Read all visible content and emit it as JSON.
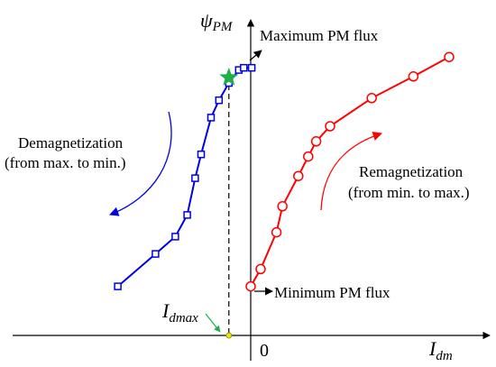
{
  "colors": {
    "demag": "#0000e6",
    "remag": "#ff0000",
    "axis": "#000000",
    "star": "#1fae4a",
    "point": "#e8e800",
    "pointer": "#1fae4a"
  },
  "axes": {
    "y_label_main": "ψ",
    "y_label_sub": "PM",
    "x_label_main": "I",
    "x_label_sub": "dm",
    "origin_label": "0"
  },
  "annotations": {
    "max_flux": "Maximum PM flux",
    "min_flux": "Minimum PM flux",
    "idmax_main": "I",
    "idmax_sub": "dmax",
    "demag_line1": "Demagnetization",
    "demag_line2": "(from max. to min.)",
    "remag_line1": "Remagnetization",
    "remag_line2": "(from min. to max.)"
  },
  "chart_data": {
    "type": "line",
    "x_range": [
      -8.5,
      10.5
    ],
    "y_range": [
      -1.0,
      12.6
    ],
    "series": [
      {
        "key": "demag",
        "marker": "square",
        "points": [
          [
            -6.7,
            1.6
          ],
          [
            -4.8,
            3.1
          ],
          [
            -3.8,
            3.9
          ],
          [
            -3.2,
            4.9
          ],
          [
            -2.8,
            6.6
          ],
          [
            -2.5,
            7.7
          ],
          [
            -2.0,
            9.4
          ],
          [
            -1.6,
            10.2
          ],
          [
            -1.1,
            11.0
          ],
          [
            -0.6,
            11.6
          ],
          [
            -0.35,
            11.7
          ],
          [
            0.05,
            11.7
          ]
        ]
      },
      {
        "key": "remag",
        "marker": "circle",
        "points": [
          [
            0.0,
            1.6
          ],
          [
            0.5,
            2.4
          ],
          [
            1.3,
            4.1
          ],
          [
            1.6,
            5.3
          ],
          [
            2.4,
            6.7
          ],
          [
            2.9,
            7.6
          ],
          [
            3.3,
            8.3
          ],
          [
            4.0,
            9.0
          ],
          [
            6.1,
            10.3
          ],
          [
            8.2,
            11.3
          ],
          [
            10.0,
            12.2
          ]
        ]
      }
    ],
    "idmax_x": -1.1
  }
}
